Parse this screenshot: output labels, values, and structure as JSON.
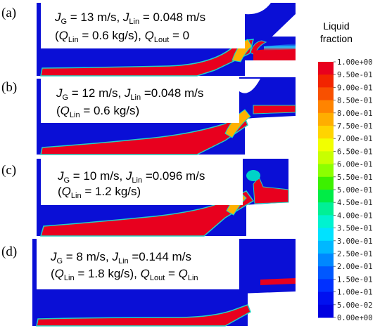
{
  "panels": [
    {
      "label": "(a)",
      "line1": [
        {
          "t": "J",
          "i": true
        },
        {
          "t": "G",
          "sub": true
        },
        {
          "t": " = 13 m/s, "
        },
        {
          "t": "J",
          "i": true
        },
        {
          "t": "Lin",
          "sub": true
        },
        {
          "t": " = 0.048 m/s"
        }
      ],
      "line2": [
        {
          "t": "("
        },
        {
          "t": "Q",
          "i": true
        },
        {
          "t": "Lin",
          "sub": true
        },
        {
          "t": " = 0.6 kg/s), "
        },
        {
          "t": "Q",
          "i": true
        },
        {
          "t": "Lout",
          "sub": true
        },
        {
          "t": " = 0"
        }
      ]
    },
    {
      "label": "(b)",
      "line1": [
        {
          "t": "J",
          "i": true
        },
        {
          "t": "G",
          "sub": true
        },
        {
          "t": " = 12 m/s, "
        },
        {
          "t": "J",
          "i": true
        },
        {
          "t": "Lin",
          "sub": true
        },
        {
          "t": " =0.048 m/s"
        }
      ],
      "line2": [
        {
          "t": "("
        },
        {
          "t": "Q",
          "i": true
        },
        {
          "t": "Lin",
          "sub": true
        },
        {
          "t": " = 0.6 kg/s)"
        }
      ]
    },
    {
      "label": "(c)",
      "line1": [
        {
          "t": "J",
          "i": true
        },
        {
          "t": "G",
          "sub": true
        },
        {
          "t": " = 10 m/s, "
        },
        {
          "t": "J",
          "i": true
        },
        {
          "t": "Lin",
          "sub": true
        },
        {
          "t": " =0.096 m/s"
        }
      ],
      "line2": [
        {
          "t": "("
        },
        {
          "t": "Q",
          "i": true
        },
        {
          "t": "Lin",
          "sub": true
        },
        {
          "t": " = 1.2 kg/s)"
        }
      ]
    },
    {
      "label": "(d)",
      "line1": [
        {
          "t": "J",
          "i": true
        },
        {
          "t": "G",
          "sub": true
        },
        {
          "t": " = 8 m/s, "
        },
        {
          "t": "J",
          "i": true
        },
        {
          "t": "Lin",
          "sub": true
        },
        {
          "t": " =0.144 m/s"
        }
      ],
      "line2": [
        {
          "t": "("
        },
        {
          "t": "Q",
          "i": true
        },
        {
          "t": "Lin",
          "sub": true
        },
        {
          "t": " = 1.8 kg/s), "
        },
        {
          "t": "Q",
          "i": true
        },
        {
          "t": "Lout",
          "sub": true
        },
        {
          "t": " = "
        },
        {
          "t": "Q",
          "i": true
        },
        {
          "t": "Lin",
          "sub": true
        }
      ]
    }
  ],
  "colorbar": {
    "title_line1": "Liquid",
    "title_line2": "fraction",
    "ticks": [
      "1.00e+00",
      "9.50e-01",
      "9.00e-01",
      "8.50e-01",
      "8.00e-01",
      "7.50e-01",
      "7.00e-01",
      "6.50e-01",
      "6.00e-01",
      "5.50e-01",
      "5.00e-01",
      "4.50e-01",
      "4.00e-01",
      "3.50e-01",
      "3.00e-01",
      "2.50e-01",
      "2.00e-01",
      "1.50e-01",
      "1.00e-01",
      "5.00e-02",
      "0.00e+00"
    ],
    "colors": [
      "#e8001e",
      "#f22400",
      "#f85000",
      "#ff8400",
      "#ffae00",
      "#ffd400",
      "#f2ff00",
      "#c8ff00",
      "#8cff00",
      "#3cf000",
      "#00ec46",
      "#00f096",
      "#00f2d0",
      "#00e2ff",
      "#00b8ff",
      "#0088ff",
      "#0058ff",
      "#0030ff",
      "#0010f0",
      "#0000e0"
    ]
  },
  "colors": {
    "liquid": "#e8001e",
    "gas": "#0a0fd6",
    "interface": "#00d2c8",
    "wall": "#ffffff"
  }
}
